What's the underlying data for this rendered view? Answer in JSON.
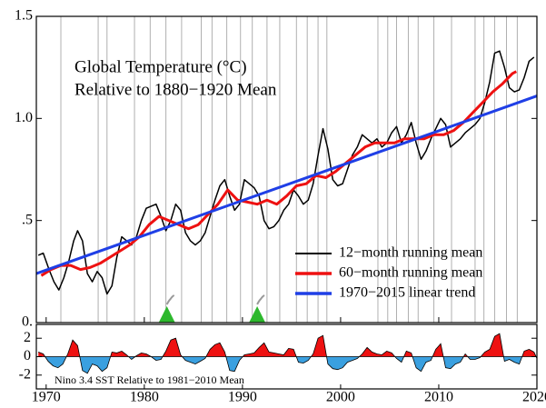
{
  "chart_data": [
    {
      "type": "line",
      "title": "Global Temperature (°C)",
      "subtitle": "Relative to 1880−1920 Mean",
      "xlim": [
        1969,
        2020
      ],
      "ylim": [
        0,
        1.5
      ],
      "yticks": [
        {
          "value": 0,
          "label": "0."
        },
        {
          "value": 0.5,
          "label": ".5"
        },
        {
          "value": 1,
          "label": "1.0"
        },
        {
          "value": 1.5,
          "label": "1.5"
        }
      ],
      "legend": "lower right",
      "vlines": [
        1971.5,
        1975.3,
        1976.2,
        1979,
        1980.6,
        1982.2,
        1983.8,
        1985.8,
        1986.9,
        1988.4,
        1989.8,
        1991,
        1992.5,
        1993.8,
        1995.5,
        1996.6,
        1997.7,
        1998.6,
        2003.8,
        2004.8,
        2005.7,
        2006.9,
        2007.9,
        2009.5,
        2011.3,
        2013.7,
        2014.6,
        2015.7,
        2016.9,
        2018
      ],
      "vline_color": "#b0b0b0",
      "markers": [
        1982.3,
        1991.5
      ],
      "marker_color": "#2db82d",
      "series": [
        {
          "name": "12−month running mean",
          "color": "#000000",
          "width": 1.5,
          "x": [
            1969.2,
            1969.7,
            1970.3,
            1970.8,
            1971.3,
            1971.8,
            1972.3,
            1972.8,
            1973.2,
            1973.7,
            1974.2,
            1974.7,
            1975.2,
            1975.7,
            1976.2,
            1976.7,
            1977.2,
            1977.7,
            1978.2,
            1978.7,
            1979.2,
            1979.7,
            1980.2,
            1980.7,
            1981.2,
            1981.7,
            1982.2,
            1982.7,
            1983.2,
            1983.7,
            1984.2,
            1984.7,
            1985.2,
            1985.7,
            1986.2,
            1986.7,
            1987.2,
            1987.7,
            1988.2,
            1988.7,
            1989.2,
            1989.7,
            1990.2,
            1990.7,
            1991.2,
            1991.7,
            1992.2,
            1992.7,
            1993.2,
            1993.7,
            1994.2,
            1994.7,
            1995.2,
            1995.7,
            1996.2,
            1996.7,
            1997.2,
            1997.7,
            1998.2,
            1998.7,
            1999.2,
            1999.7,
            2000.2,
            2000.7,
            2001.2,
            2001.7,
            2002.2,
            2002.7,
            2003.2,
            2003.7,
            2004.2,
            2004.7,
            2005.2,
            2005.7,
            2006.2,
            2006.7,
            2007.2,
            2007.7,
            2008.2,
            2008.7,
            2009.2,
            2009.7,
            2010.2,
            2010.7,
            2011.2,
            2011.7,
            2012.2,
            2012.7,
            2013.2,
            2013.7,
            2014.2,
            2014.7,
            2015.2,
            2015.7,
            2016.2,
            2016.7,
            2017.2,
            2017.7,
            2018.2,
            2018.7,
            2019.2,
            2019.7
          ],
          "values": [
            0.33,
            0.34,
            0.26,
            0.2,
            0.16,
            0.22,
            0.3,
            0.4,
            0.45,
            0.4,
            0.24,
            0.2,
            0.25,
            0.22,
            0.14,
            0.18,
            0.32,
            0.42,
            0.4,
            0.38,
            0.42,
            0.5,
            0.56,
            0.57,
            0.58,
            0.52,
            0.45,
            0.5,
            0.58,
            0.55,
            0.44,
            0.4,
            0.38,
            0.4,
            0.44,
            0.52,
            0.6,
            0.67,
            0.7,
            0.62,
            0.55,
            0.58,
            0.7,
            0.68,
            0.66,
            0.62,
            0.5,
            0.46,
            0.47,
            0.5,
            0.55,
            0.58,
            0.65,
            0.62,
            0.58,
            0.6,
            0.68,
            0.82,
            0.95,
            0.85,
            0.7,
            0.67,
            0.68,
            0.75,
            0.82,
            0.86,
            0.92,
            0.9,
            0.88,
            0.9,
            0.86,
            0.88,
            0.93,
            0.96,
            0.88,
            0.92,
            0.98,
            0.88,
            0.8,
            0.84,
            0.9,
            0.95,
            1.0,
            0.97,
            0.86,
            0.88,
            0.9,
            0.93,
            0.95,
            0.97,
            1.0,
            1.08,
            1.18,
            1.32,
            1.33,
            1.25,
            1.15,
            1.13,
            1.14,
            1.2,
            1.28,
            1.3
          ]
        },
        {
          "name": "60−month running mean",
          "color": "#ee1111",
          "width": 3,
          "x": [
            1969.5,
            1970.5,
            1971.5,
            1972.5,
            1973.5,
            1974.5,
            1975.5,
            1976.5,
            1977.5,
            1978.5,
            1979.5,
            1980.5,
            1981.5,
            1982.5,
            1983.5,
            1984.5,
            1985.5,
            1986.5,
            1987.5,
            1988.5,
            1989.5,
            1990.5,
            1991.5,
            1992.5,
            1993.5,
            1994.5,
            1995.5,
            1996.5,
            1997.5,
            1998.5,
            1999.5,
            2000.5,
            2001.5,
            2002.5,
            2003.5,
            2004.5,
            2005.5,
            2006.5,
            2007.5,
            2008.5,
            2009.5,
            2010.5,
            2011.5,
            2012.5,
            2013.5,
            2014.5,
            2015.5,
            2016.5,
            2017.5,
            2017.9
          ],
          "values": [
            0.23,
            0.26,
            0.28,
            0.28,
            0.26,
            0.27,
            0.29,
            0.32,
            0.35,
            0.38,
            0.42,
            0.48,
            0.52,
            0.5,
            0.48,
            0.46,
            0.48,
            0.53,
            0.58,
            0.65,
            0.6,
            0.59,
            0.58,
            0.6,
            0.58,
            0.62,
            0.67,
            0.68,
            0.72,
            0.71,
            0.74,
            0.78,
            0.82,
            0.86,
            0.88,
            0.88,
            0.88,
            0.9,
            0.9,
            0.9,
            0.92,
            0.92,
            0.94,
            0.98,
            1.03,
            1.08,
            1.13,
            1.17,
            1.22,
            1.23
          ]
        },
        {
          "name": "1970−2015 linear trend",
          "color": "#1f3fe6",
          "width": 3,
          "x": [
            1969,
            2020
          ],
          "values": [
            0.24,
            1.11
          ]
        }
      ]
    },
    {
      "type": "area",
      "title": "Nino 3.4 SST Relative to 1981−2010 Mean",
      "xlim": [
        1969,
        2020
      ],
      "xticks": [
        1970,
        1980,
        1990,
        2000,
        2010,
        2020
      ],
      "ylim": [
        -3.5,
        3.5
      ],
      "yticks": [
        -2,
        0,
        2
      ],
      "positive_color": "#ee1111",
      "negative_color": "#3aa0e0",
      "x": [
        1969.2,
        1969.7,
        1970.2,
        1970.7,
        1971.2,
        1971.7,
        1972.2,
        1972.7,
        1973.2,
        1973.7,
        1974.2,
        1974.7,
        1975.2,
        1975.7,
        1976.2,
        1976.7,
        1977.2,
        1977.7,
        1978.2,
        1978.7,
        1979.2,
        1979.7,
        1980.2,
        1980.7,
        1981.2,
        1981.7,
        1982.2,
        1982.7,
        1983.2,
        1983.7,
        1984.2,
        1984.7,
        1985.2,
        1985.7,
        1986.2,
        1986.7,
        1987.2,
        1987.7,
        1988.2,
        1988.7,
        1989.2,
        1989.7,
        1990.2,
        1990.7,
        1991.2,
        1991.7,
        1992.2,
        1992.7,
        1993.2,
        1993.7,
        1994.2,
        1994.7,
        1995.2,
        1995.7,
        1996.2,
        1996.7,
        1997.2,
        1997.7,
        1998.2,
        1998.7,
        1999.2,
        1999.7,
        2000.2,
        2000.7,
        2001.2,
        2001.7,
        2002.2,
        2002.7,
        2003.2,
        2003.7,
        2004.2,
        2004.7,
        2005.2,
        2005.7,
        2006.2,
        2006.7,
        2007.2,
        2007.7,
        2008.2,
        2008.7,
        2009.2,
        2009.7,
        2010.2,
        2010.7,
        2011.2,
        2011.7,
        2012.2,
        2012.7,
        2013.2,
        2013.7,
        2014.2,
        2014.7,
        2015.2,
        2015.7,
        2016.2,
        2016.7,
        2017.2,
        2017.7,
        2018.2,
        2018.7,
        2019.2,
        2019.7,
        2020
      ],
      "values": [
        0.5,
        0.3,
        -0.5,
        -1.0,
        -1.2,
        -0.8,
        0.3,
        1.8,
        1.2,
        -1.5,
        -1.8,
        -0.8,
        -1.0,
        -1.6,
        -1.2,
        0.5,
        0.4,
        0.6,
        0.2,
        -0.3,
        0.1,
        0.4,
        0.3,
        0.0,
        -0.4,
        -0.3,
        0.6,
        1.8,
        2.0,
        0.2,
        -0.4,
        -0.6,
        -0.8,
        -0.5,
        -0.2,
        0.8,
        1.3,
        1.5,
        0.5,
        -1.5,
        -1.6,
        -0.4,
        0.2,
        0.3,
        0.4,
        1.0,
        1.5,
        0.5,
        0.4,
        0.3,
        0.2,
        0.9,
        0.8,
        -0.6,
        -0.7,
        -0.4,
        0.3,
        2.0,
        2.3,
        -0.8,
        -1.3,
        -1.4,
        -1.2,
        -0.6,
        -0.4,
        -0.2,
        0.3,
        1.0,
        0.5,
        0.3,
        0.2,
        0.6,
        0.4,
        -0.2,
        -0.6,
        0.6,
        0.4,
        -1.2,
        -1.6,
        -0.6,
        -0.4,
        0.8,
        1.4,
        -1.2,
        -1.3,
        -0.8,
        -0.6,
        0.3,
        -0.3,
        -0.3,
        -0.1,
        0.5,
        0.8,
        2.2,
        2.5,
        -0.5,
        -0.3,
        -0.6,
        -0.8,
        0.6,
        0.8,
        0.5,
        -0.2
      ]
    }
  ]
}
